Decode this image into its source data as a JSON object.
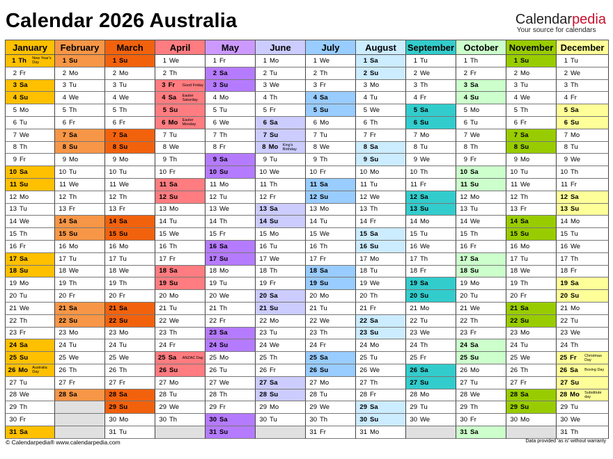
{
  "title": "Calendar 2026 Australia",
  "brand": {
    "logo_a": "Calendar",
    "logo_b": "pedia",
    "tagline": "Your source for calendars"
  },
  "footer_left": "© Calendarpedia®   www.calendarpedia.com",
  "footer_right": "Data provided 'as is' without warranty",
  "months": [
    {
      "name": "January",
      "color": "#ffc000",
      "light": "#ffc000",
      "days": 31,
      "start": 3,
      "notes": {
        "1": "New Year's Day",
        "26": "Australia Day"
      }
    },
    {
      "name": "February",
      "color": "#f79646",
      "light": "#f79646",
      "days": 28,
      "start": 6,
      "notes": {}
    },
    {
      "name": "March",
      "color": "#f2620d",
      "light": "#f2620d",
      "days": 31,
      "start": 6,
      "notes": {}
    },
    {
      "name": "April",
      "color": "#ff7c80",
      "light": "#ff7c80",
      "days": 30,
      "start": 2,
      "notes": {
        "3": "Good Friday",
        "4": "Easter Saturday",
        "6": "Easter Monday",
        "25": "ANZAC Day"
      }
    },
    {
      "name": "May",
      "color": "#cc99ff",
      "light": "#b57bff",
      "days": 31,
      "start": 4,
      "notes": {}
    },
    {
      "name": "June",
      "color": "#ccccff",
      "light": "#ccccff",
      "days": 30,
      "start": 0,
      "notes": {
        "8": "King's Birthday"
      }
    },
    {
      "name": "July",
      "color": "#99ccff",
      "light": "#99ccff",
      "days": 31,
      "start": 2,
      "notes": {}
    },
    {
      "name": "August",
      "color": "#ccecff",
      "light": "#ccecff",
      "days": 31,
      "start": 5,
      "notes": {}
    },
    {
      "name": "September",
      "color": "#33cccc",
      "light": "#33cccc",
      "days": 30,
      "start": 1,
      "notes": {}
    },
    {
      "name": "October",
      "color": "#ccffcc",
      "light": "#ccffcc",
      "days": 31,
      "start": 3,
      "notes": {}
    },
    {
      "name": "November",
      "color": "#99cc00",
      "light": "#99cc00",
      "days": 30,
      "start": 6,
      "notes": {}
    },
    {
      "name": "December",
      "color": "#ffff99",
      "light": "#ffff99",
      "days": 31,
      "start": 1,
      "notes": {
        "25": "Christmas Day",
        "26": "Boxing Day",
        "28": "Substitute day"
      }
    }
  ],
  "weekday_abbr": [
    "Mo",
    "Tu",
    "We",
    "Th",
    "Fr",
    "Sa",
    "Su"
  ],
  "holidays": {
    "January": [
      1,
      26
    ],
    "April": [
      3,
      4,
      6,
      25
    ],
    "June": [
      8
    ],
    "December": [
      25,
      26,
      28
    ]
  }
}
